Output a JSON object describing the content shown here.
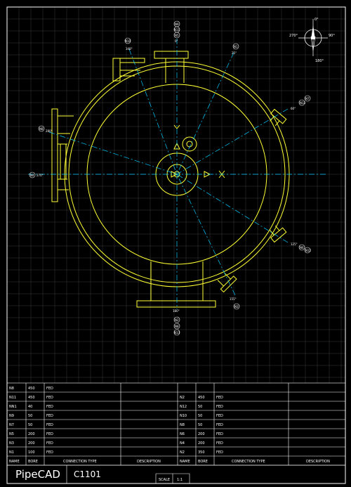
{
  "colors": {
    "background": "#000000",
    "grid": "#3a3a3a",
    "vessel": "#ffff33",
    "centerline": "#00ccff",
    "text": "#ffffff"
  },
  "compass": {
    "north": "0°",
    "east": "90°",
    "south": "180°",
    "west": "270°"
  },
  "nozzles": {
    "top": {
      "tags": [
        "N9",
        "N11",
        "N5"
      ],
      "angle": "0°"
    },
    "n10": {
      "tag": "N10",
      "angle": "348°"
    },
    "n1": {
      "tag": "N1",
      "angle": "25°"
    },
    "n4": {
      "tag": "N4",
      "angle": "270°"
    },
    "n8_left": {
      "tag": "N8",
      "angle": "280°"
    },
    "right_upper": {
      "tags": [
        "N13",
        "N7"
      ],
      "angle": "60°"
    },
    "right_lower": {
      "tags": [
        "N6",
        "N12"
      ],
      "angle": "125°"
    },
    "n3": {
      "tag": "N3",
      "angle": "155°"
    },
    "bottom": {
      "tags": [
        "N2",
        "N8",
        "N13"
      ],
      "angle": "180°"
    }
  },
  "table": {
    "headers": [
      "NAME",
      "BORE",
      "CONNECTION TYPE",
      "DESCRIPTION",
      "NAME",
      "BORE",
      "CONNECTION TYPE",
      "DESCRIPTION"
    ],
    "left_rows": [
      {
        "name": "N8",
        "bore": "450",
        "type": "FED"
      },
      {
        "name": "N11",
        "bore": "450",
        "type": "FED"
      },
      {
        "name": "NN1",
        "bore": "40",
        "type": "FED"
      },
      {
        "name": "N9",
        "bore": "50",
        "type": "FED"
      },
      {
        "name": "N7",
        "bore": "50",
        "type": "FED"
      },
      {
        "name": "N5",
        "bore": "200",
        "type": "FED"
      },
      {
        "name": "N3",
        "bore": "200",
        "type": "FED"
      },
      {
        "name": "N1",
        "bore": "100",
        "type": "FED"
      }
    ],
    "right_rows": [
      {
        "name": "",
        "bore": "",
        "type": ""
      },
      {
        "name": "N2",
        "bore": "450",
        "type": "FED"
      },
      {
        "name": "N12",
        "bore": "50",
        "type": "FED"
      },
      {
        "name": "N10",
        "bore": "50",
        "type": "FED"
      },
      {
        "name": "N8",
        "bore": "50",
        "type": "FED"
      },
      {
        "name": "N6",
        "bore": "200",
        "type": "FED"
      },
      {
        "name": "N4",
        "bore": "200",
        "type": "FED"
      },
      {
        "name": "N2",
        "bore": "350",
        "type": "FED"
      }
    ]
  },
  "title_block": {
    "brand": "PipeCAD",
    "drawing": "C1101",
    "scale_label": "SCALE",
    "scale_value": "1:1"
  }
}
